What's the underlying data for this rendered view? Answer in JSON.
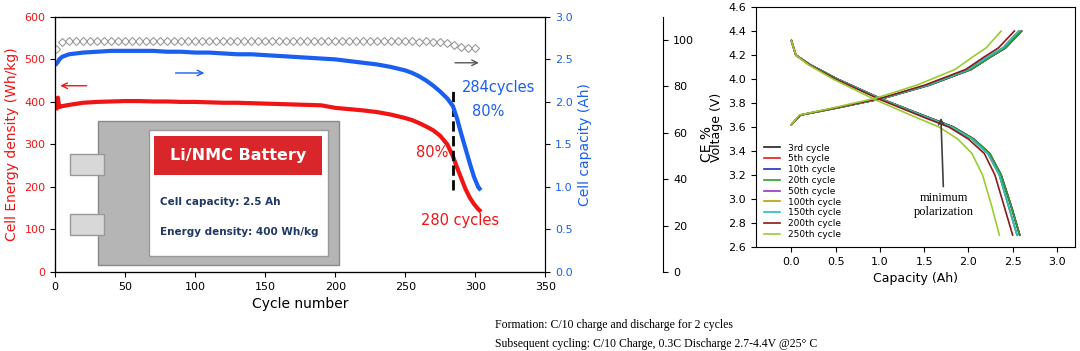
{
  "chart_data": [
    {
      "type": "line",
      "x_label": "Cycle number",
      "y_label": "Cell Energy density (Wh/kg)",
      "y2_label": "Cell capacity (Ah)",
      "y3_label": "CE %",
      "xlim": [
        0,
        350
      ],
      "xticks": [
        0,
        50,
        100,
        150,
        200,
        250,
        300,
        350
      ],
      "ylim": [
        0,
        600
      ],
      "yticks": [
        0,
        100,
        200,
        300,
        400,
        500,
        600
      ],
      "y2lim": [
        0.0,
        3.0
      ],
      "y2ticks": [
        0.0,
        0.5,
        1.0,
        1.5,
        2.0,
        2.5,
        3.0
      ],
      "y3lim": [
        0,
        110
      ],
      "y3ticks": [
        0,
        20,
        40,
        60,
        80,
        100
      ],
      "series": [
        {
          "axis": "y",
          "type": "line",
          "color": "#f01414",
          "marker": "none",
          "line_style": "solid",
          "x": [
            1,
            2,
            3,
            5,
            10,
            20,
            30,
            40,
            50,
            60,
            70,
            80,
            90,
            100,
            110,
            120,
            130,
            140,
            150,
            160,
            170,
            180,
            190,
            200,
            210,
            220,
            230,
            240,
            250,
            255,
            260,
            265,
            270,
            275,
            280,
            284,
            287,
            290,
            293,
            296,
            299,
            302,
            303
          ],
          "values": [
            385,
            410,
            388,
            390,
            393,
            398,
            400,
            401,
            402,
            402,
            401,
            401,
            400,
            400,
            399,
            398,
            398,
            397,
            396,
            395,
            394,
            393,
            392,
            386,
            383,
            380,
            376,
            370,
            362,
            357,
            350,
            342,
            333,
            320,
            300,
            272,
            245,
            220,
            195,
            175,
            160,
            148,
            145
          ]
        },
        {
          "axis": "y2",
          "type": "line",
          "color": "#1a5ff0",
          "marker": "none",
          "line_style": "solid",
          "x": [
            1,
            2,
            3,
            5,
            10,
            20,
            30,
            40,
            50,
            60,
            70,
            80,
            90,
            100,
            110,
            120,
            130,
            140,
            150,
            160,
            170,
            180,
            190,
            200,
            210,
            220,
            230,
            240,
            250,
            255,
            260,
            265,
            270,
            275,
            280,
            284,
            287,
            290,
            293,
            296,
            299,
            302,
            303
          ],
          "values": [
            2.45,
            2.47,
            2.5,
            2.53,
            2.56,
            2.58,
            2.59,
            2.6,
            2.6,
            2.6,
            2.6,
            2.59,
            2.59,
            2.58,
            2.58,
            2.57,
            2.56,
            2.56,
            2.55,
            2.54,
            2.53,
            2.52,
            2.51,
            2.5,
            2.48,
            2.46,
            2.44,
            2.41,
            2.37,
            2.34,
            2.3,
            2.25,
            2.19,
            2.12,
            2.04,
            1.95,
            1.8,
            1.62,
            1.45,
            1.28,
            1.12,
            1.0,
            0.98
          ]
        },
        {
          "axis": "y3",
          "type": "scatter",
          "color": "#9a9a9a",
          "marker": "diamond",
          "line_style": "none",
          "x": [
            1,
            5,
            10,
            15,
            20,
            25,
            30,
            35,
            40,
            45,
            50,
            55,
            60,
            65,
            70,
            75,
            80,
            85,
            90,
            95,
            100,
            105,
            110,
            115,
            120,
            125,
            130,
            135,
            140,
            145,
            150,
            155,
            160,
            165,
            170,
            175,
            180,
            185,
            190,
            195,
            200,
            205,
            210,
            215,
            220,
            225,
            230,
            235,
            240,
            245,
            250,
            255,
            260,
            265,
            270,
            275,
            280,
            285,
            290,
            295,
            300
          ],
          "values": [
            96.0,
            99.3,
            99.5,
            99.6,
            99.6,
            99.5,
            99.6,
            99.6,
            99.5,
            99.6,
            99.6,
            99.6,
            99.5,
            99.6,
            99.6,
            99.6,
            99.5,
            99.6,
            99.6,
            99.5,
            99.6,
            99.6,
            99.5,
            99.6,
            99.5,
            99.6,
            99.6,
            99.5,
            99.6,
            99.5,
            99.5,
            99.6,
            99.5,
            99.5,
            99.6,
            99.5,
            99.5,
            99.6,
            99.5,
            99.5,
            99.5,
            99.5,
            99.4,
            99.5,
            99.5,
            99.4,
            99.5,
            99.4,
            99.5,
            99.4,
            99.4,
            99.4,
            99.3,
            99.4,
            99.3,
            99.2,
            98.8,
            98.0,
            97.2,
            96.6,
            96.4
          ]
        }
      ],
      "vlines": [
        284
      ],
      "annotations": [
        {
          "text": "284cycles",
          "color": "#1a5ff0"
        },
        {
          "text": "80%",
          "color": "#1a5ff0"
        },
        {
          "text": "80%",
          "color": "#f01414"
        },
        {
          "text": "280 cycles",
          "color": "#f01414"
        }
      ],
      "inset": {
        "title": "Li/NMC Battery",
        "lines": [
          "Cell capacity: 2.5 Ah",
          "Energy density: 400 Wh/kg"
        ]
      }
    },
    {
      "type": "line",
      "x_label": "Capacity (Ah)",
      "y_label": "Voltage (V)",
      "xlim": [
        -0.4,
        3.2
      ],
      "xticks": [
        0.0,
        0.5,
        1.0,
        1.5,
        2.0,
        2.5,
        3.0
      ],
      "ylim": [
        2.6,
        4.6
      ],
      "yticks": [
        2.6,
        2.8,
        3.0,
        3.2,
        3.4,
        3.6,
        3.8,
        4.0,
        4.2,
        4.4,
        4.6
      ],
      "legend": "lower left",
      "charge_voltage": [
        3.62,
        3.7,
        3.76,
        3.84,
        3.95,
        4.08,
        4.18,
        4.26,
        4.4
      ],
      "discharge_voltage": [
        4.32,
        4.2,
        4.12,
        4.0,
        3.83,
        3.68,
        3.6,
        3.5,
        3.38,
        3.2,
        2.95,
        2.7
      ],
      "series": [
        {
          "name": "3rd cycle",
          "color": "#222222",
          "charge_capacity": [
            0,
            0.1,
            0.52,
            1.04,
            1.56,
            2.03,
            2.24,
            2.42,
            2.6
          ],
          "discharge_capacity": [
            0,
            0.05,
            0.21,
            0.52,
            1.03,
            1.55,
            1.83,
            2.06,
            2.24,
            2.37,
            2.48,
            2.58
          ]
        },
        {
          "name": "5th cycle",
          "color": "#e41a1c",
          "charge_capacity": [
            0,
            0.1,
            0.52,
            1.04,
            1.56,
            2.03,
            2.24,
            2.42,
            2.6
          ],
          "discharge_capacity": [
            0,
            0.05,
            0.21,
            0.52,
            1.03,
            1.55,
            1.83,
            2.06,
            2.24,
            2.37,
            2.48,
            2.58
          ]
        },
        {
          "name": "10th cycle",
          "color": "#1f2fd0",
          "charge_capacity": [
            0,
            0.1,
            0.52,
            1.04,
            1.56,
            2.03,
            2.24,
            2.42,
            2.6
          ],
          "discharge_capacity": [
            0,
            0.05,
            0.21,
            0.52,
            1.03,
            1.55,
            1.83,
            2.06,
            2.24,
            2.37,
            2.48,
            2.58
          ]
        },
        {
          "name": "20th cycle",
          "color": "#2ca02c",
          "charge_capacity": [
            0,
            0.1,
            0.52,
            1.04,
            1.56,
            2.03,
            2.24,
            2.42,
            2.6
          ],
          "discharge_capacity": [
            0,
            0.05,
            0.21,
            0.52,
            1.03,
            1.55,
            1.83,
            2.06,
            2.24,
            2.37,
            2.48,
            2.58
          ]
        },
        {
          "name": "50th cycle",
          "color": "#9932cc",
          "charge_capacity": [
            0,
            0.1,
            0.51,
            1.03,
            1.54,
            2.0,
            2.21,
            2.39,
            2.57
          ],
          "discharge_capacity": [
            0,
            0.05,
            0.2,
            0.51,
            1.02,
            1.53,
            1.81,
            2.04,
            2.22,
            2.35,
            2.45,
            2.55
          ]
        },
        {
          "name": "100th cycle",
          "color": "#b8a000",
          "charge_capacity": [
            0,
            0.1,
            0.51,
            1.03,
            1.54,
            2.0,
            2.21,
            2.39,
            2.57
          ],
          "discharge_capacity": [
            0,
            0.05,
            0.2,
            0.51,
            1.02,
            1.53,
            1.81,
            2.04,
            2.22,
            2.35,
            2.45,
            2.55
          ]
        },
        {
          "name": "150th cycle",
          "color": "#20c0c0",
          "charge_capacity": [
            0,
            0.1,
            0.51,
            1.03,
            1.54,
            2.0,
            2.21,
            2.39,
            2.57
          ],
          "discharge_capacity": [
            0,
            0.05,
            0.2,
            0.51,
            1.02,
            1.53,
            1.81,
            2.04,
            2.22,
            2.35,
            2.45,
            2.55
          ]
        },
        {
          "name": "200th cycle",
          "color": "#8b1a1a",
          "charge_capacity": [
            0,
            0.1,
            0.5,
            1.01,
            1.51,
            1.97,
            2.17,
            2.34,
            2.52
          ],
          "discharge_capacity": [
            0,
            0.05,
            0.2,
            0.5,
            1.0,
            1.5,
            1.78,
            2.0,
            2.18,
            2.3,
            2.4,
            2.5
          ]
        },
        {
          "name": "250th cycle",
          "color": "#9acd32",
          "charge_capacity": [
            0,
            0.09,
            0.47,
            0.95,
            1.42,
            1.85,
            2.04,
            2.2,
            2.37
          ],
          "discharge_capacity": [
            0,
            0.05,
            0.19,
            0.47,
            0.94,
            1.41,
            1.67,
            1.88,
            2.04,
            2.16,
            2.26,
            2.35
          ]
        }
      ],
      "annotations": [
        {
          "text": "minimum\npolarization",
          "color": "#404040"
        }
      ],
      "notes": [
        "Formation: C/10 charge and discharge for 2 cycles",
        "Subsequent cycling: C/10 Charge, 0.3C Discharge 2.7-4.4V @25° C"
      ]
    }
  ]
}
